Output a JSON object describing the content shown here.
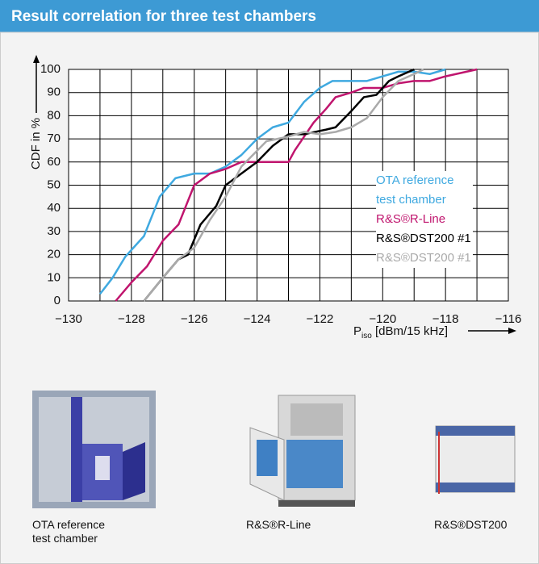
{
  "header": {
    "title": "Result correlation for three test chambers"
  },
  "chart_data": {
    "type": "line",
    "y_label": "CDF in %",
    "x_label": {
      "main": "P",
      "sub": "iso",
      "rest": " [dBm/15 kHz]"
    },
    "xlim": [
      -130,
      -116
    ],
    "ylim": [
      0,
      100
    ],
    "xticks": [
      {
        "value": -130,
        "label": "−130"
      },
      {
        "value": -128,
        "label": "−128"
      },
      {
        "value": -126,
        "label": "−126"
      },
      {
        "value": -124,
        "label": "−124"
      },
      {
        "value": -122,
        "label": "−122"
      },
      {
        "value": -120,
        "label": "−120"
      },
      {
        "value": -118,
        "label": "−118"
      },
      {
        "value": -116,
        "label": "−116"
      }
    ],
    "x_grid_lines": [
      -130,
      -129,
      -128,
      -127,
      -126,
      -125,
      -124,
      -123,
      -122,
      -121,
      -120,
      -119,
      -118,
      -117,
      -116
    ],
    "yticks": [
      0,
      10,
      20,
      30,
      40,
      50,
      60,
      70,
      80,
      90,
      100
    ],
    "grid": true,
    "legend": "lower right",
    "series": [
      {
        "name": "OTA reference test chamber",
        "color": "#3fa9e0",
        "x": [
          -129,
          -128.6,
          -128.2,
          -127.6,
          -127.1,
          -126.6,
          -126,
          -125.5,
          -125,
          -124.5,
          -124,
          -123.5,
          -123,
          -122.5,
          -122,
          -121.6,
          -121,
          -120.5,
          -120,
          -119.5,
          -119,
          -118.5,
          -118
        ],
        "values": [
          3,
          10,
          19,
          28,
          45,
          53,
          55,
          55,
          58,
          63,
          70,
          75,
          77,
          86,
          92,
          95,
          95,
          95,
          97,
          99,
          99,
          98,
          100
        ]
      },
      {
        "name": "R&S®R-Line",
        "color": "#c0156e",
        "x": [
          -128.5,
          -128,
          -127.5,
          -127,
          -126.5,
          -126,
          -125.5,
          -125,
          -124.5,
          -124,
          -123.5,
          -123,
          -122.8,
          -122.2,
          -121.8,
          -121.5,
          -121,
          -120.6,
          -120,
          -119.5,
          -119,
          -118.5,
          -118,
          -117
        ],
        "values": [
          0,
          8,
          15,
          26,
          33,
          50,
          55,
          57,
          60,
          60,
          60,
          60,
          65,
          77,
          83,
          88,
          90,
          92,
          92,
          94,
          95,
          95,
          97,
          100
        ]
      },
      {
        "name": "R&S®DST200 #1",
        "color": "#000000",
        "x": [
          -127.6,
          -127,
          -126.5,
          -126.2,
          -125.8,
          -125.3,
          -125,
          -124.5,
          -124,
          -123.5,
          -123,
          -122.5,
          -121.8,
          -121.5,
          -121,
          -120.6,
          -120.2,
          -119.8,
          -119.5,
          -119
        ],
        "values": [
          0,
          10,
          18,
          20,
          33,
          41,
          50,
          55,
          60,
          67,
          72,
          72,
          74,
          75,
          82,
          88,
          89,
          95,
          97,
          100
        ]
      },
      {
        "name": "R&S®DST200 #1",
        "color": "#aaaaaa",
        "x": [
          -127.6,
          -127,
          -126.5,
          -126,
          -125.5,
          -125,
          -124.5,
          -123.7,
          -123,
          -122.5,
          -122,
          -121.5,
          -121,
          -120.5,
          -120,
          -119.5,
          -119,
          -118.7
        ],
        "values": [
          0,
          10,
          18,
          23,
          35,
          45,
          58,
          69,
          71,
          73,
          72,
          73,
          75,
          79,
          88,
          95,
          98,
          100
        ]
      }
    ]
  },
  "products": [
    {
      "caption": "OTA reference test chamber"
    },
    {
      "caption": "R&S®R-Line"
    },
    {
      "caption": "R&S®DST200"
    }
  ]
}
